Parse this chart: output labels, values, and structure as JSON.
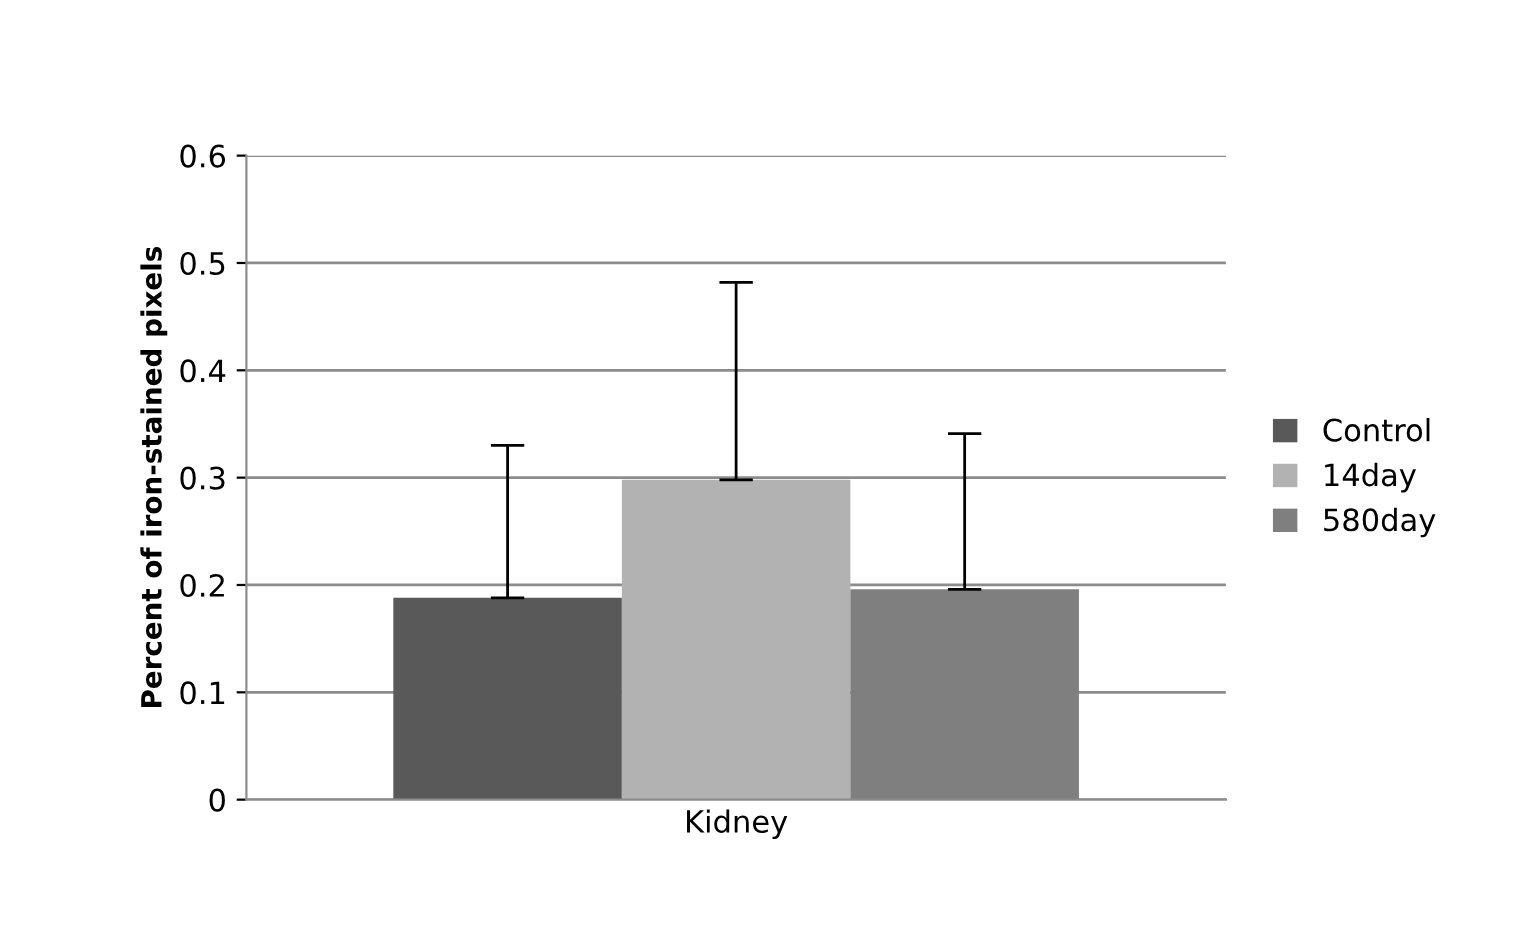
{
  "chart_data": {
    "type": "bar",
    "ylabel": "Percent of iron-stained pixels",
    "categories": [
      "Kidney"
    ],
    "series": [
      {
        "name": "Control",
        "color": "#595959",
        "values": [
          0.188
        ],
        "errors": [
          [
            0.188,
            0.33
          ]
        ]
      },
      {
        "name": "14day",
        "color": "#b2b2b2",
        "values": [
          0.298
        ],
        "errors": [
          [
            0.298,
            0.482
          ]
        ]
      },
      {
        "name": "580day",
        "color": "#7f7f7f",
        "values": [
          0.196
        ],
        "errors": [
          [
            0.196,
            0.341
          ]
        ]
      }
    ],
    "ylim": [
      0,
      0.6
    ],
    "yticks": [
      0,
      0.1,
      0.2,
      0.3,
      0.4,
      0.5,
      0.6
    ],
    "grid": "y",
    "legend": "right"
  }
}
